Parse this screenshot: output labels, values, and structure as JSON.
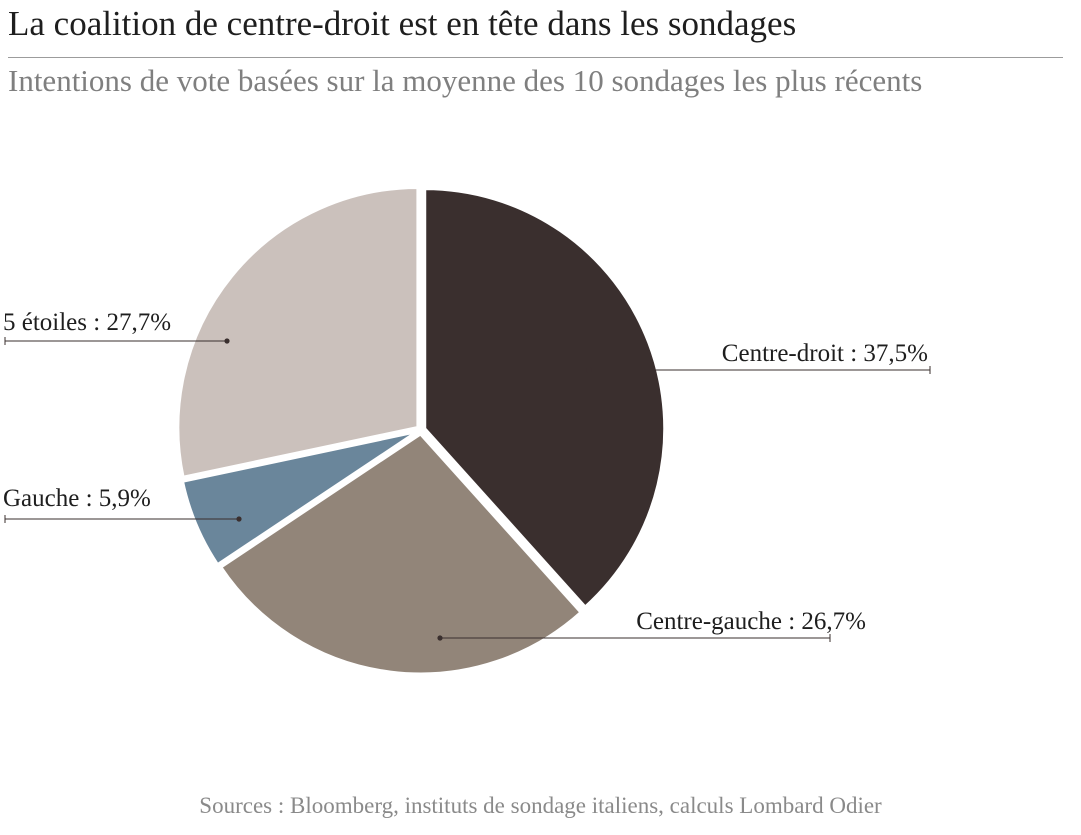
{
  "chart_data": {
    "type": "pie",
    "title": "La coalition de centre-droit est en tête dans les sondages",
    "subtitle": "Intentions de vote basées sur la moyenne des 10 sondages les plus récents",
    "source": "Sources : Bloomberg, instituts de sondage italiens, calculs Lombard Odier",
    "slices": [
      {
        "name": "Centre-droit",
        "value": 37.5,
        "label": "Centre-droit : 37,5%",
        "color": "#3a2f2e"
      },
      {
        "name": "Centre-gauche",
        "value": 26.7,
        "label": "Centre-gauche : 26,7%",
        "color": "#928579"
      },
      {
        "name": "Gauche",
        "value": 5.9,
        "label": "Gauche : 5,9%",
        "color": "#6a869b"
      },
      {
        "name": "5 étoiles",
        "value": 27.7,
        "label": "5 étoiles : 27,7%",
        "color": "#cbc1bc"
      }
    ],
    "start_angle_deg": 0,
    "direction": "clockwise",
    "legend": "none",
    "leader_color": "#3a2f2e"
  }
}
